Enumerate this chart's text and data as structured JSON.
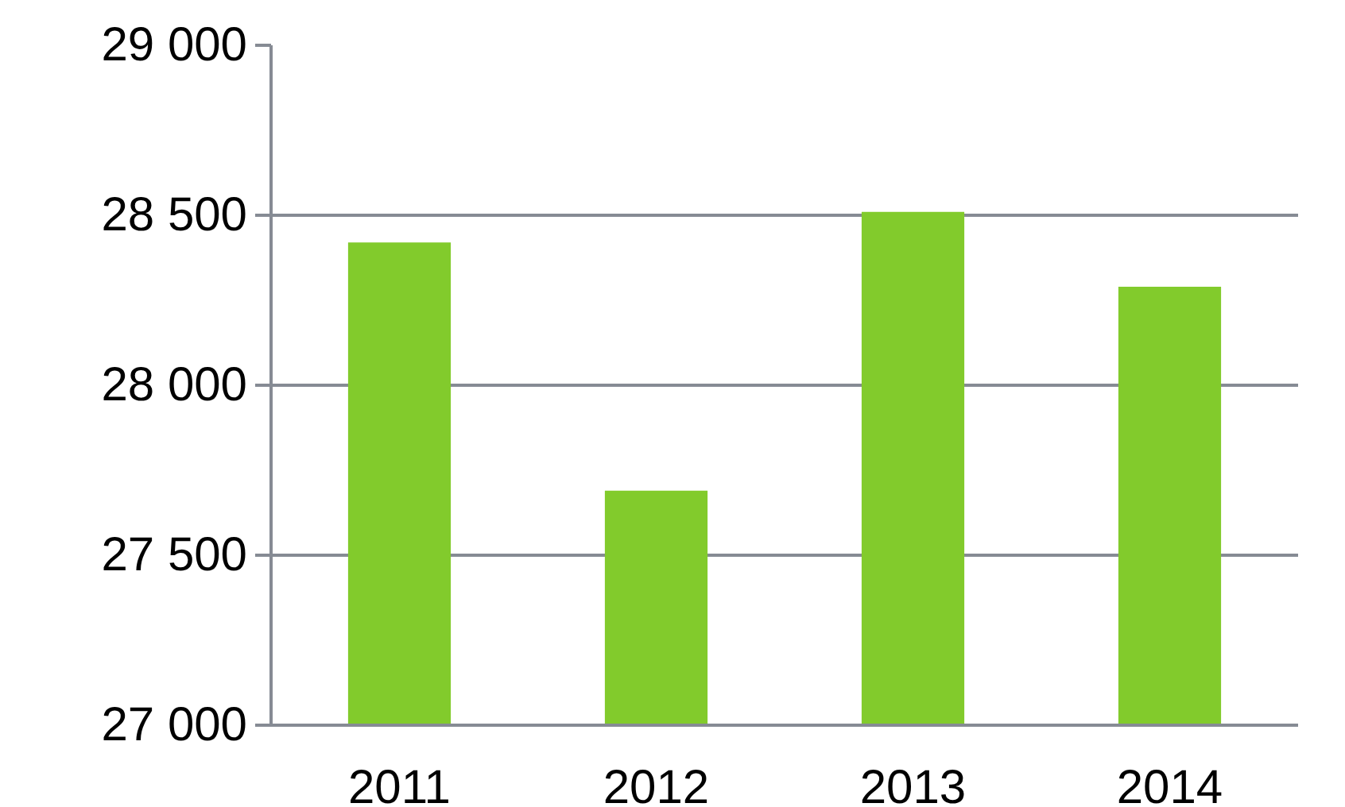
{
  "chart_data": {
    "type": "bar",
    "categories": [
      "2011",
      "2012",
      "2013",
      "2014"
    ],
    "values": [
      28420,
      27690,
      28510,
      28290
    ],
    "color": "#82cb2c",
    "ylim": [
      27000,
      29000
    ],
    "yticks": [
      {
        "value": 27000,
        "label": "27 000"
      },
      {
        "value": 27500,
        "label": "27 500"
      },
      {
        "value": 28000,
        "label": "28 000"
      },
      {
        "value": 28500,
        "label": "28 500"
      },
      {
        "value": 29000,
        "label": "29 000"
      }
    ],
    "grid": "y"
  }
}
